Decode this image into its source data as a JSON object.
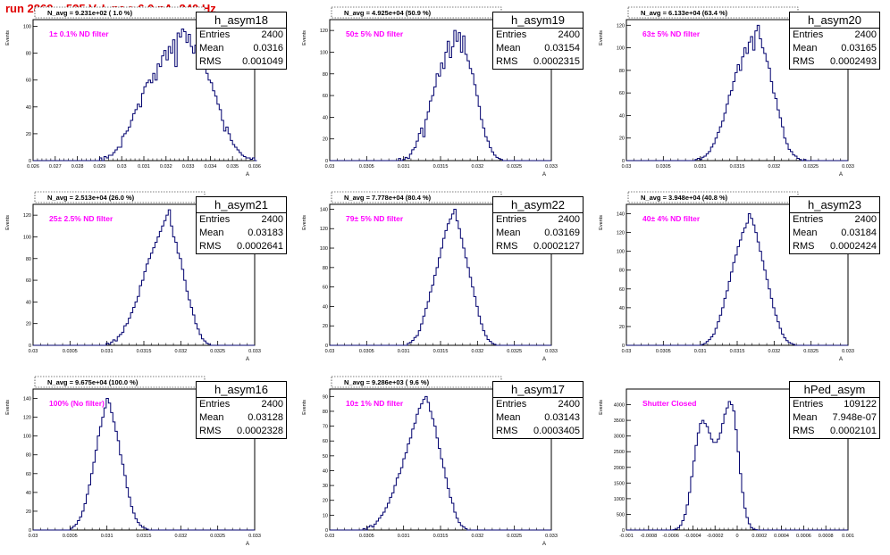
{
  "header": {
    "title": "run 2869,   525 V, I_pe ≈ 6.0 nA, 240 Hz"
  },
  "colors": {
    "histogram": "#00006e",
    "annotation": "#ff00ff",
    "title": "#e00000"
  },
  "stat_labels": {
    "entries": "Entries",
    "mean": "Mean",
    "rms": "RMS"
  },
  "chart_data": [
    {
      "type": "area",
      "name": "h_asym18",
      "navg": "N_avg = 9.231e+02 ( 1.0 %)",
      "label": "1± 0.1% ND filter",
      "stats": {
        "entries": "2400",
        "mean": "0.0316",
        "rms": "0.001049"
      },
      "ylabel": "Events",
      "xlabel": "A",
      "xlim": [
        0.026,
        0.036
      ],
      "ylim": [
        0,
        105
      ],
      "xticks": [
        "0.026",
        "0.027",
        "0.028",
        "0.029",
        "0.03",
        "0.031",
        "0.032",
        "0.033",
        "0.034",
        "0.035",
        "0.036"
      ],
      "yticks": [
        "0",
        "20",
        "40",
        "60",
        "80",
        "100"
      ],
      "hist": {
        "xmin": 0.026,
        "binwidth": 0.0001,
        "counts": [
          0,
          0,
          0,
          0,
          0,
          0,
          0,
          0,
          0,
          0,
          0,
          0,
          0,
          0,
          0,
          0,
          0,
          0,
          0,
          0,
          0,
          0,
          0,
          0,
          0,
          0,
          0,
          0,
          0,
          0,
          2,
          0,
          3,
          2,
          4,
          4,
          6,
          8,
          10,
          10,
          18,
          20,
          22,
          25,
          30,
          35,
          38,
          42,
          40,
          50,
          55,
          58,
          60,
          58,
          65,
          60,
          72,
          70,
          78,
          82,
          75,
          85,
          80,
          90,
          70,
          95,
          92,
          98,
          96,
          88,
          94,
          85,
          80,
          86,
          75,
          80,
          72,
          70,
          65,
          60,
          58,
          52,
          48,
          42,
          38,
          30,
          22,
          25,
          20,
          15,
          12,
          10,
          8,
          6,
          4,
          3,
          2,
          2,
          1,
          2,
          0
        ]
      }
    },
    {
      "type": "area",
      "name": "h_asym19",
      "navg": "N_avg = 4.925e+04 (50.9 %)",
      "label": "50± 5% ND filter",
      "stats": {
        "entries": "2400",
        "mean": "0.03154",
        "rms": "0.0002315"
      },
      "ylabel": "Events",
      "xlabel": "A",
      "xlim": [
        0.03,
        0.033
      ],
      "ylim": [
        0,
        130
      ],
      "xticks": [
        "0.03",
        "0.0305",
        "0.031",
        "0.0315",
        "0.032",
        "0.0325",
        "0.033"
      ],
      "yticks": [
        "0",
        "20",
        "40",
        "60",
        "80",
        "100",
        "120"
      ],
      "hist": {
        "xmin": 0.03,
        "binwidth": 3e-05,
        "counts": [
          0,
          0,
          0,
          0,
          0,
          0,
          0,
          0,
          0,
          0,
          0,
          0,
          0,
          0,
          0,
          0,
          0,
          0,
          0,
          0,
          0,
          0,
          0,
          0,
          0,
          0,
          0,
          0,
          0,
          0,
          0,
          2,
          0,
          1,
          3,
          2,
          6,
          10,
          12,
          18,
          25,
          30,
          22,
          38,
          45,
          55,
          60,
          68,
          80,
          78,
          90,
          85,
          100,
          110,
          95,
          105,
          120,
          110,
          118,
          100,
          115,
          98,
          92,
          85,
          80,
          70,
          60,
          50,
          38,
          30,
          22,
          18,
          12,
          8,
          5,
          3,
          2,
          1,
          0,
          0,
          0,
          0,
          0,
          0,
          0,
          0,
          0,
          0,
          0,
          0,
          0,
          0,
          0,
          0,
          0,
          0,
          0,
          0,
          0,
          0
        ]
      }
    },
    {
      "type": "area",
      "name": "h_asym20",
      "navg": "N_avg = 6.133e+04 (63.4 %)",
      "label": "63± 5% ND filter",
      "stats": {
        "entries": "2400",
        "mean": "0.03165",
        "rms": "0.0002493"
      },
      "ylabel": "Events",
      "xlabel": "A",
      "xlim": [
        0.03,
        0.033
      ],
      "ylim": [
        0,
        125
      ],
      "xticks": [
        "0.03",
        "0.0305",
        "0.031",
        "0.0315",
        "0.032",
        "0.0325",
        "0.033"
      ],
      "yticks": [
        "0",
        "20",
        "40",
        "60",
        "80",
        "100",
        "120"
      ],
      "hist": {
        "xmin": 0.03,
        "binwidth": 3e-05,
        "counts": [
          0,
          0,
          0,
          0,
          0,
          0,
          0,
          0,
          0,
          0,
          0,
          0,
          0,
          0,
          0,
          0,
          0,
          0,
          0,
          0,
          0,
          0,
          0,
          0,
          0,
          0,
          0,
          0,
          0,
          0,
          0,
          1,
          2,
          1,
          3,
          4,
          6,
          8,
          12,
          15,
          20,
          25,
          30,
          35,
          42,
          50,
          58,
          62,
          70,
          78,
          85,
          80,
          92,
          100,
          95,
          105,
          110,
          98,
          115,
          120,
          108,
          100,
          95,
          88,
          82,
          70,
          60,
          55,
          45,
          38,
          30,
          20,
          15,
          10,
          8,
          5,
          4,
          2,
          1,
          0,
          1,
          0,
          0,
          0,
          0,
          0,
          0,
          0,
          0,
          0,
          0,
          0,
          0,
          0,
          0,
          0,
          0,
          0,
          0,
          0
        ]
      }
    },
    {
      "type": "area",
      "name": "h_asym21",
      "navg": "N_avg = 2.513e+04 (26.0 %)",
      "label": "25± 2.5% ND filter",
      "stats": {
        "entries": "2400",
        "mean": "0.03183",
        "rms": "0.0002641"
      },
      "ylabel": "Events",
      "xlabel": "A",
      "xlim": [
        0.03,
        0.033
      ],
      "ylim": [
        0,
        130
      ],
      "xticks": [
        "0.03",
        "0.0305",
        "0.031",
        "0.0315",
        "0.032",
        "0.0325",
        "0.033"
      ],
      "yticks": [
        "0",
        "20",
        "40",
        "60",
        "80",
        "100",
        "120"
      ],
      "hist": {
        "xmin": 0.03,
        "binwidth": 3e-05,
        "counts": [
          0,
          0,
          0,
          0,
          0,
          0,
          0,
          0,
          0,
          0,
          0,
          0,
          0,
          0,
          0,
          0,
          0,
          0,
          0,
          0,
          0,
          0,
          0,
          0,
          0,
          0,
          0,
          0,
          0,
          0,
          0,
          0,
          0,
          2,
          1,
          3,
          5,
          4,
          8,
          10,
          12,
          18,
          20,
          25,
          30,
          35,
          40,
          45,
          55,
          60,
          68,
          75,
          80,
          85,
          90,
          95,
          100,
          105,
          110,
          115,
          120,
          125,
          110,
          100,
          95,
          85,
          80,
          70,
          60,
          50,
          42,
          35,
          28,
          20,
          15,
          10,
          6,
          4,
          2,
          1,
          0,
          0,
          0,
          0,
          0,
          0,
          0,
          0,
          0,
          0,
          0,
          0,
          0,
          0,
          0,
          0,
          0,
          0,
          0,
          0
        ]
      }
    },
    {
      "type": "area",
      "name": "h_asym22",
      "navg": "N_avg = 7.778e+04 (80.4 %)",
      "label": "79± 5% ND filter",
      "stats": {
        "entries": "2400",
        "mean": "0.03169",
        "rms": "0.0002127"
      },
      "ylabel": "Events",
      "xlabel": "A",
      "xlim": [
        0.03,
        0.033
      ],
      "ylim": [
        0,
        145
      ],
      "xticks": [
        "0.03",
        "0.0305",
        "0.031",
        "0.0315",
        "0.032",
        "0.0325",
        "0.033"
      ],
      "yticks": [
        "0",
        "20",
        "40",
        "60",
        "80",
        "100",
        "120",
        "140"
      ],
      "hist": {
        "xmin": 0.03,
        "binwidth": 3e-05,
        "counts": [
          0,
          0,
          0,
          0,
          0,
          0,
          0,
          0,
          0,
          0,
          0,
          0,
          0,
          0,
          0,
          0,
          0,
          0,
          0,
          0,
          0,
          0,
          0,
          0,
          0,
          0,
          0,
          0,
          0,
          0,
          0,
          0,
          0,
          0,
          0,
          2,
          3,
          5,
          8,
          10,
          15,
          22,
          30,
          38,
          45,
          55,
          62,
          72,
          80,
          90,
          100,
          110,
          118,
          125,
          130,
          135,
          140,
          128,
          120,
          110,
          100,
          90,
          80,
          70,
          60,
          50,
          40,
          30,
          22,
          15,
          10,
          6,
          4,
          2,
          1,
          0,
          0,
          0,
          0,
          0,
          0,
          0,
          0,
          0,
          0,
          0,
          0,
          0,
          0,
          0,
          0,
          0,
          0,
          0,
          0,
          0,
          0,
          0,
          0,
          0
        ]
      }
    },
    {
      "type": "area",
      "name": "h_asym23",
      "navg": "N_avg = 3.948e+04 (40.8 %)",
      "label": "40± 4% ND filter",
      "stats": {
        "entries": "2400",
        "mean": "0.03184",
        "rms": "0.0002424"
      },
      "ylabel": "Events",
      "xlabel": "A",
      "xlim": [
        0.03,
        0.033
      ],
      "ylim": [
        0,
        150
      ],
      "xticks": [
        "0.03",
        "0.0305",
        "0.031",
        "0.0315",
        "0.032",
        "0.0325",
        "0.033"
      ],
      "yticks": [
        "0",
        "20",
        "40",
        "60",
        "80",
        "100",
        "120",
        "140"
      ],
      "hist": {
        "xmin": 0.03,
        "binwidth": 3e-05,
        "counts": [
          0,
          0,
          0,
          0,
          0,
          0,
          0,
          0,
          0,
          0,
          0,
          0,
          0,
          0,
          0,
          0,
          0,
          0,
          0,
          0,
          0,
          0,
          0,
          0,
          0,
          0,
          0,
          0,
          0,
          0,
          0,
          0,
          0,
          0,
          1,
          2,
          4,
          6,
          9,
          12,
          18,
          25,
          32,
          40,
          50,
          58,
          68,
          78,
          88,
          96,
          105,
          112,
          120,
          125,
          130,
          140,
          135,
          128,
          120,
          110,
          100,
          90,
          80,
          70,
          60,
          50,
          40,
          32,
          25,
          18,
          12,
          8,
          5,
          3,
          2,
          1,
          0,
          0,
          0,
          0,
          0,
          0,
          0,
          0,
          0,
          0,
          0,
          0,
          0,
          0,
          0,
          0,
          0,
          0,
          0,
          0,
          0,
          0,
          0,
          0
        ]
      }
    },
    {
      "type": "area",
      "name": "h_asym16",
      "navg": "N_avg = 9.675e+04 (100.0 %)",
      "label": "100% (No filter)",
      "stats": {
        "entries": "2400",
        "mean": "0.03128",
        "rms": "0.0002328"
      },
      "ylabel": "Events",
      "xlabel": "A",
      "xlim": [
        0.03,
        0.033
      ],
      "ylim": [
        0,
        150
      ],
      "xticks": [
        "0.03",
        "0.0305",
        "0.031",
        "0.0315",
        "0.032",
        "0.0325",
        "0.033"
      ],
      "yticks": [
        "0",
        "20",
        "40",
        "60",
        "80",
        "100",
        "120",
        "140"
      ],
      "hist": {
        "xmin": 0.03,
        "binwidth": 3e-05,
        "counts": [
          0,
          0,
          0,
          0,
          0,
          0,
          0,
          0,
          0,
          0,
          0,
          0,
          0,
          0,
          0,
          0,
          0,
          2,
          4,
          6,
          10,
          14,
          20,
          28,
          38,
          48,
          60,
          72,
          85,
          100,
          110,
          120,
          130,
          140,
          135,
          125,
          115,
          105,
          95,
          80,
          70,
          58,
          45,
          35,
          25,
          18,
          12,
          8,
          5,
          3,
          2,
          1,
          0,
          0,
          0,
          0,
          0,
          0,
          0,
          0,
          0,
          0,
          0,
          0,
          0,
          0,
          0,
          0,
          0,
          0,
          0,
          0,
          0,
          0,
          0,
          0,
          0,
          0,
          0,
          0,
          0,
          0,
          0,
          0,
          0,
          0,
          0,
          0,
          0,
          0,
          0,
          0,
          0,
          0,
          0,
          0,
          0,
          0,
          0,
          0
        ]
      }
    },
    {
      "type": "area",
      "name": "h_asym17",
      "navg": "N_avg = 9.286e+03 ( 9.6 %)",
      "label": "10± 1% ND filter",
      "stats": {
        "entries": "2400",
        "mean": "0.03143",
        "rms": "0.0003405"
      },
      "ylabel": "Events",
      "xlabel": "A",
      "xlim": [
        0.03,
        0.033
      ],
      "ylim": [
        0,
        95
      ],
      "xticks": [
        "0.03",
        "0.0305",
        "0.031",
        "0.0315",
        "0.032",
        "0.0325",
        "0.033"
      ],
      "yticks": [
        "0",
        "10",
        "20",
        "30",
        "40",
        "50",
        "60",
        "70",
        "80",
        "90"
      ],
      "hist": {
        "xmin": 0.03,
        "binwidth": 3e-05,
        "counts": [
          0,
          0,
          0,
          0,
          0,
          0,
          0,
          0,
          0,
          0,
          0,
          0,
          0,
          0,
          0,
          1,
          0,
          2,
          3,
          2,
          4,
          6,
          8,
          10,
          12,
          15,
          18,
          22,
          25,
          30,
          35,
          38,
          42,
          48,
          52,
          58,
          62,
          68,
          72,
          78,
          82,
          85,
          88,
          90,
          86,
          80,
          75,
          70,
          62,
          55,
          48,
          42,
          35,
          28,
          22,
          18,
          12,
          8,
          5,
          3,
          2,
          1,
          0,
          0,
          0,
          0,
          0,
          0,
          0,
          0,
          0,
          0,
          0,
          0,
          0,
          0,
          0,
          0,
          0,
          0,
          0,
          0,
          0,
          0,
          0,
          0,
          0,
          0,
          0,
          0,
          0,
          0,
          0,
          0,
          0,
          0,
          0,
          0,
          0,
          0
        ]
      }
    },
    {
      "type": "area",
      "name": "hPed_asym",
      "navg": "",
      "label": "Shutter Closed",
      "stats": {
        "entries": "109122",
        "mean": "7.948e-07",
        "rms": "0.0002101"
      },
      "ylabel": "Events",
      "xlabel": "",
      "xlim": [
        -0.001,
        0.001
      ],
      "ylim": [
        0,
        4500
      ],
      "xticks": [
        "-0.001",
        "-0.0008",
        "-0.0006",
        "-0.0004",
        "-0.0002",
        "0",
        "0.0002",
        "0.0004",
        "0.0006",
        "0.0008",
        "0.001"
      ],
      "yticks": [
        "0",
        "500",
        "1000",
        "1500",
        "2000",
        "2500",
        "3000",
        "3500",
        "4000"
      ],
      "hist": {
        "xmin": -0.001,
        "binwidth": 2e-05,
        "counts": [
          0,
          0,
          0,
          0,
          0,
          0,
          0,
          0,
          0,
          0,
          0,
          0,
          0,
          0,
          0,
          0,
          0,
          0,
          0,
          0,
          0,
          10,
          30,
          80,
          150,
          300,
          500,
          800,
          1200,
          1700,
          2200,
          2700,
          3100,
          3400,
          3500,
          3400,
          3300,
          3100,
          2900,
          2800,
          2800,
          2900,
          3100,
          3400,
          3700,
          3900,
          4100,
          4000,
          3800,
          3200,
          2500,
          1800,
          1200,
          700,
          400,
          200,
          80,
          30,
          10,
          0,
          0,
          0,
          0,
          0,
          0,
          0,
          0,
          0,
          0,
          0,
          0,
          0,
          0,
          0,
          0,
          0,
          0,
          0,
          0,
          0,
          0,
          0,
          0,
          0,
          0,
          0,
          0,
          0,
          0,
          0,
          0,
          0,
          0,
          0,
          0,
          0,
          0,
          0,
          0,
          0
        ]
      }
    }
  ]
}
